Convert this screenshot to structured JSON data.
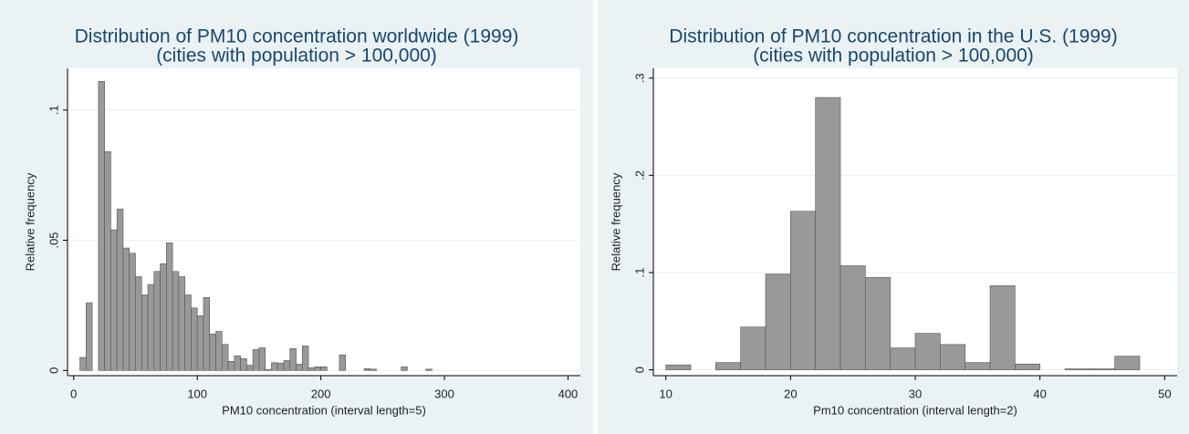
{
  "chart_data": [
    {
      "type": "histogram",
      "title": "Distribution of PM10 concentration worldwide (1999)",
      "subtitle": "(cities with population > 100,000)",
      "x_label": "PM10 concentration (interval length=5)",
      "y_label": "Relative frequency",
      "bins": [
        5,
        10,
        15,
        20,
        25,
        30,
        35,
        40,
        45,
        50,
        55,
        60,
        65,
        70,
        75,
        80,
        85,
        90,
        95,
        100,
        105,
        110,
        115,
        120,
        125,
        130,
        135,
        140,
        145,
        150,
        155,
        160,
        165,
        170,
        175,
        180,
        185,
        190,
        195,
        200,
        205,
        210,
        215,
        220,
        225,
        230,
        235,
        240,
        245,
        250,
        255,
        260,
        265,
        270,
        275,
        280,
        285,
        290
      ],
      "values": [
        0.005,
        0.026,
        0,
        0.111,
        0.084,
        0.054,
        0.062,
        0.047,
        0.045,
        0.036,
        0.029,
        0.033,
        0.038,
        0.041,
        0.049,
        0.038,
        0.036,
        0.029,
        0.024,
        0.021,
        0.028,
        0.014,
        0.015,
        0.01,
        0.0035,
        0.0056,
        0.0045,
        0.002,
        0.008,
        0.0087,
        0.0004,
        0.003,
        0.0028,
        0.0038,
        0.0084,
        0.0024,
        0.0094,
        0.001,
        0.0014,
        0.0014,
        0,
        0,
        0.006,
        0,
        0,
        0,
        0.0007,
        0.0005,
        0,
        0,
        0,
        0,
        0.0014,
        0,
        0,
        0,
        0.0005
      ],
      "color": "#999999",
      "xlim": [
        -5,
        410
      ],
      "ylim": [
        -0.002,
        0.116
      ],
      "xticks": [
        0,
        100,
        200,
        300,
        400
      ],
      "yticks": [
        0,
        {
          "value": 0.05,
          "label": ".05"
        },
        {
          "value": 0.1,
          "label": ".1"
        }
      ],
      "grid": true
    },
    {
      "type": "histogram",
      "title": "Distribution of PM10 concentration in the U.S. (1999)",
      "subtitle": "(cities with population > 100,000)",
      "x_label": "Pm10 concentration (interval length=2)",
      "y_label": "Relative frequency",
      "bins": [
        10,
        12,
        14,
        16,
        18,
        20,
        22,
        24,
        26,
        28,
        30,
        32,
        34,
        36,
        38,
        40,
        42,
        44,
        46,
        48
      ],
      "values": [
        0.005,
        0,
        0.0075,
        0.044,
        0.0985,
        0.163,
        0.28,
        0.107,
        0.095,
        0.0225,
        0.0375,
        0.026,
        0.0075,
        0.0865,
        0.006,
        0,
        0.001,
        0.001,
        0.014
      ],
      "color": "#999999",
      "xlim": [
        9,
        51
      ],
      "ylim": [
        -0.006,
        0.31
      ],
      "xticks": [
        10,
        20,
        30,
        40,
        50
      ],
      "yticks": [
        0,
        {
          "value": 0.1,
          "label": ".1"
        },
        {
          "value": 0.2,
          "label": ".2"
        },
        {
          "value": 0.3,
          "label": ".3"
        }
      ],
      "grid": true
    }
  ]
}
